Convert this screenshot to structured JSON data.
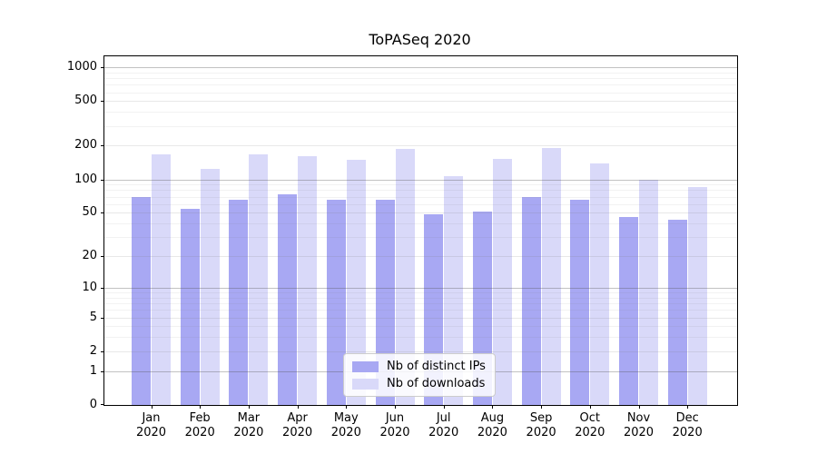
{
  "chart_data": {
    "type": "bar",
    "title": "ToPASeq 2020",
    "x_categories": [
      "Jan",
      "Feb",
      "Mar",
      "Apr",
      "May",
      "Jun",
      "Jul",
      "Aug",
      "Sep",
      "Oct",
      "Nov",
      "Dec"
    ],
    "x_year_label": "2020",
    "series": [
      {
        "name": "Nb of distinct IPs",
        "color": "#a8a8f3",
        "values": [
          70,
          54,
          65,
          73,
          66,
          66,
          48,
          51,
          69,
          65,
          46,
          43
        ]
      },
      {
        "name": "Nb of downloads",
        "color": "#d9d9f9",
        "values": [
          166,
          124,
          168,
          161,
          149,
          186,
          106,
          152,
          191,
          140,
          100,
          85
        ]
      }
    ],
    "y_ticks": [
      0,
      1,
      2,
      5,
      10,
      20,
      50,
      100,
      200,
      500,
      1000
    ],
    "y_scale": "log1p",
    "ylim": [
      0,
      1240
    ],
    "grid": true,
    "legend_position": "lower center"
  }
}
